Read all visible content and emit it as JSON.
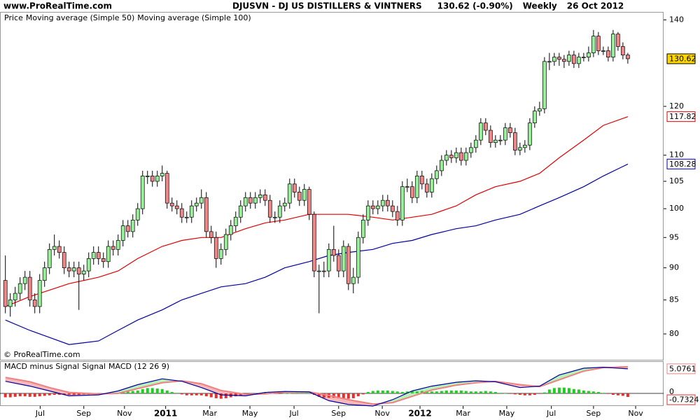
{
  "header": {
    "site": "www.ProRealTime.com"
  },
  "chart_data": [
    {
      "type": "candlestick",
      "title": "DJUSVN - DJ US DISTILLERS & VINTNERS",
      "quote": "130.62 (-0.90%)",
      "period": "Weekly",
      "date": "26 Oct 2012",
      "copyright": "© ProRealTime.com",
      "log_scale": true,
      "price": {
        "name": "Price",
        "up_color": "#99ee99",
        "down_color": "#ee8888",
        "open": [
          88,
          84,
          85,
          86,
          87.5,
          88.5,
          85,
          84,
          88,
          90,
          93,
          93.5,
          92.5,
          90,
          89.5,
          90,
          89,
          89.5,
          91.5,
          92.5,
          91.5,
          91,
          93.5,
          93,
          94.5,
          97,
          96,
          98,
          100,
          106,
          106,
          105,
          106,
          106.5,
          101,
          100.5,
          100,
          98.5,
          98.5,
          100.5,
          101,
          102,
          96,
          95,
          91.5,
          93,
          95.5,
          97,
          98.5,
          100.5,
          102,
          101,
          102,
          102.5,
          101.5,
          98.5,
          98.5,
          100.5,
          101,
          104.5,
          103,
          101.5,
          103.5,
          99,
          89.5,
          89.5,
          89.5,
          93,
          92,
          89.5,
          93.5,
          87.5,
          88.5,
          95,
          98,
          100.5,
          100,
          100.5,
          101.5,
          100.5,
          99.5,
          98,
          104,
          104,
          102,
          106,
          104.5,
          103,
          105.5,
          107,
          109,
          110,
          109.5,
          110.5,
          109,
          110.5,
          111.5,
          113,
          116.5,
          115,
          112.5,
          113,
          113,
          115.5,
          114.5,
          111,
          111.5,
          112,
          116.5,
          119,
          119.5,
          130,
          130,
          131,
          130.5,
          130,
          131.5,
          129.5,
          131,
          131,
          132,
          136,
          132.5,
          132.5,
          131,
          136.5,
          133.5,
          131.5
        ],
        "high": [
          92,
          86,
          87,
          88.5,
          89.5,
          89.5,
          86,
          89,
          91,
          94,
          95.5,
          94.5,
          93.5,
          91,
          91,
          91,
          90.5,
          92.5,
          93.5,
          93.5,
          92.5,
          94.5,
          94.5,
          95.5,
          98,
          98,
          99,
          101,
          107,
          107,
          107,
          107,
          108,
          107,
          102,
          101.5,
          101,
          99.5,
          101.5,
          102,
          103.5,
          103,
          97,
          96,
          94,
          96.5,
          98,
          99.5,
          101.5,
          103,
          103,
          103,
          103.5,
          103.5,
          102.5,
          99.5,
          101.5,
          102,
          105.5,
          105.5,
          104,
          104.5,
          104,
          99.5,
          90.5,
          91,
          94,
          97,
          93,
          94.5,
          94,
          90,
          96,
          99,
          101.5,
          101.5,
          101.5,
          102.5,
          102.5,
          101.5,
          100.5,
          105,
          105.5,
          105,
          107,
          107,
          105.5,
          106.5,
          108,
          110,
          111,
          111,
          111.5,
          111.5,
          111.5,
          112.5,
          114,
          117.5,
          117.5,
          116,
          114,
          114,
          116.5,
          116.5,
          115.5,
          112.5,
          113,
          117.5,
          120,
          121,
          131,
          132,
          132,
          132,
          131.5,
          132.5,
          132.5,
          132,
          132,
          133.5,
          137.5,
          137,
          133.5,
          133.5,
          137.5,
          137,
          134.5,
          132
        ],
        "low": [
          83,
          82.5,
          84,
          85,
          86.5,
          84,
          83,
          83,
          87,
          89,
          92,
          91.5,
          89,
          88.5,
          88.5,
          83.5,
          88,
          88.5,
          90.5,
          90.5,
          90,
          90,
          92,
          92,
          93.5,
          95,
          95,
          97,
          99,
          104.5,
          104,
          104,
          105,
          100,
          99.5,
          99,
          97.5,
          97.5,
          97.5,
          99.5,
          100,
          95,
          94,
          90,
          90.5,
          92,
          94.5,
          96,
          97.5,
          99.5,
          100,
          100,
          101,
          100.5,
          97.5,
          97.5,
          97.5,
          99.5,
          100,
          102,
          100.5,
          100.5,
          98,
          88.5,
          83,
          88.5,
          88.5,
          91,
          88.5,
          88.5,
          86.5,
          86,
          87.5,
          94,
          97,
          99,
          99,
          99.5,
          99.5,
          98.5,
          97,
          97,
          103,
          101,
          101,
          103.5,
          102,
          102,
          104.5,
          106,
          108,
          108.5,
          108.5,
          108,
          108,
          109.5,
          110.5,
          112,
          114,
          111.5,
          111.5,
          112,
          112,
          113.5,
          110,
          110,
          110.5,
          111,
          115.5,
          118,
          118.5,
          128,
          129,
          129,
          128.5,
          129,
          128.5,
          128.5,
          130,
          130,
          131,
          131.5,
          131.5,
          130,
          130,
          132.5,
          130.5,
          129.5
        ],
        "close": [
          84,
          85,
          86,
          87.5,
          88.5,
          85,
          84,
          88,
          90,
          93,
          93.5,
          92.5,
          90,
          89.5,
          90,
          89,
          89.5,
          91.5,
          92.5,
          91.5,
          91,
          93.5,
          93,
          94.5,
          97,
          96,
          98,
          100,
          106,
          106,
          105,
          106,
          106.5,
          101,
          100.5,
          100,
          98.5,
          98.5,
          100.5,
          101,
          102,
          96,
          95,
          91.5,
          93,
          95.5,
          97,
          98.5,
          100.5,
          102,
          101,
          102,
          102.5,
          101.5,
          98.5,
          98.5,
          100.5,
          101,
          104.5,
          103,
          101.5,
          103.5,
          99,
          89.5,
          89.5,
          89.5,
          93,
          92,
          89.5,
          93.5,
          87.5,
          88.5,
          95,
          98,
          100.5,
          100,
          100.5,
          101.5,
          100.5,
          99.5,
          98,
          104,
          104,
          102,
          106,
          104.5,
          103,
          105.5,
          107,
          109,
          110,
          109.5,
          110.5,
          109,
          110.5,
          111.5,
          113,
          116.5,
          115,
          112.5,
          113,
          113,
          115.5,
          114.5,
          111,
          111.5,
          112,
          116.5,
          119,
          119.5,
          130,
          130,
          131,
          130.5,
          130,
          131.5,
          129.5,
          131,
          131,
          132,
          136,
          132.5,
          132.5,
          131,
          136.5,
          133.5,
          131.5,
          130.62
        ]
      },
      "series": [
        {
          "name": "Moving average (Simple 50)",
          "color": "#e00000",
          "x": [
            0,
            5,
            9,
            13,
            19,
            23,
            27,
            32,
            36,
            40,
            44,
            49,
            53,
            57,
            62,
            66,
            70,
            75,
            79,
            83,
            87,
            92,
            96,
            100,
            105,
            109,
            113,
            118,
            122,
            127
          ],
          "values": [
            84,
            85.5,
            86.5,
            87.5,
            88.5,
            89.5,
            91.5,
            93.5,
            94.5,
            95,
            95,
            96.5,
            97.5,
            98,
            99,
            99,
            99,
            98.5,
            98,
            98.5,
            99,
            100.5,
            102.5,
            104,
            105,
            106.5,
            109.5,
            113,
            116,
            117.82
          ]
        },
        {
          "name": "Moving average (Simple 100)",
          "color": "#0000a0",
          "x": [
            0,
            5,
            9,
            13,
            19,
            23,
            27,
            32,
            36,
            40,
            44,
            49,
            53,
            57,
            62,
            66,
            70,
            75,
            79,
            83,
            87,
            92,
            96,
            100,
            105,
            109,
            113,
            118,
            122,
            127
          ],
          "values": [
            82,
            80.5,
            79.5,
            78.5,
            79,
            80.5,
            82,
            83.5,
            85,
            86,
            87,
            87.5,
            88.5,
            90,
            91,
            92,
            92.5,
            93,
            94,
            94.5,
            95.5,
            96.5,
            97,
            98,
            99,
            100.5,
            102,
            104,
            106,
            108.28
          ]
        }
      ],
      "last_color": "#ffd700",
      "xlim": [
        -1.1,
        134.3
      ],
      "xticks": [
        {
          "value": 7.1,
          "label": "Jul"
        },
        {
          "value": 16,
          "label": "Sep"
        },
        {
          "value": 24.3,
          "label": "Nov"
        },
        {
          "value": 32.7,
          "label": "2011"
        },
        {
          "value": 41.7,
          "label": "Mar"
        },
        {
          "value": 49.9,
          "label": "May"
        },
        {
          "value": 58.9,
          "label": "Jul"
        },
        {
          "value": 68,
          "label": "Sep"
        },
        {
          "value": 76.9,
          "label": "Nov"
        },
        {
          "value": 84.6,
          "label": "2012"
        },
        {
          "value": 93.4,
          "label": "Mar"
        },
        {
          "value": 102.3,
          "label": "May"
        },
        {
          "value": 111.4,
          "label": "Jul"
        },
        {
          "value": 120,
          "label": "Sep"
        },
        {
          "value": 128.6,
          "label": "Nov"
        }
      ],
      "ylim": [
        76.3,
        142
      ],
      "yticks": [
        80,
        85,
        90,
        95,
        100,
        105,
        110,
        120,
        140
      ]
    },
    {
      "type": "macd",
      "series": [
        {
          "name": "MACD minus Signal",
          "color": "#e03030",
          "up_color": "#22cc22",
          "values": [
            -0.8,
            -0.8,
            -0.7,
            -0.6,
            -0.6,
            -0.7,
            -0.7,
            -0.6,
            -0.5,
            -0.4,
            -0.3,
            -0.3,
            -0.3,
            -0.3,
            -0.3,
            -0.3,
            -0.2,
            -0.2,
            -0.1,
            -0.1,
            -0.1,
            -0.1,
            0,
            0.1,
            0.3,
            0.4,
            0.5,
            0.6,
            0.9,
            1.1,
            1.1,
            1,
            0.9,
            0.6,
            0.3,
            0.1,
            -0.2,
            -0.4,
            -0.4,
            -0.4,
            -0.4,
            -0.6,
            -0.8,
            -1.0,
            -1.1,
            -1.0,
            -0.8,
            -0.6,
            -0.4,
            -0.2,
            -0.1,
            0,
            0.1,
            0.2,
            0.1,
            -0.1,
            -0.1,
            0,
            0,
            0.1,
            0.1,
            0.1,
            0.1,
            -0.3,
            -0.7,
            -0.9,
            -0.9,
            -0.9,
            -1.0,
            -1.0,
            -1.1,
            -1.0,
            -0.6,
            -0.2,
            0.3,
            0.5,
            0.6,
            0.6,
            0.6,
            0.5,
            0.4,
            0.3,
            0.4,
            0.5,
            0.4,
            0.5,
            0.5,
            0.4,
            0.4,
            0.5,
            0.6,
            0.6,
            0.6,
            0.6,
            0.5,
            0.4,
            0.4,
            0.4,
            0.5,
            0.4,
            0.3,
            0.1,
            0,
            -0.1,
            -0.2,
            -0.3,
            -0.4,
            -0.4,
            -0.3,
            -0.1,
            0.2,
            0.8,
            1.1,
            1.2,
            1.2,
            1.1,
            0.9,
            0.8,
            0.6,
            0.5,
            0.4,
            0.3,
            0.1,
            -0.1,
            -0.3,
            -0.4,
            -0.5,
            -0.7324
          ]
        },
        {
          "name": "Signal",
          "color": "#f08080",
          "x": [
            0,
            5,
            9,
            13,
            19,
            23,
            27,
            32,
            36,
            40,
            44,
            49,
            53,
            57,
            62,
            66,
            70,
            75,
            79,
            83,
            87,
            92,
            96,
            100,
            105,
            109,
            113,
            118,
            122,
            127
          ],
          "values": [
            3.3,
            2.4,
            1.2,
            0.2,
            -0.1,
            0,
            1,
            2.2,
            2.6,
            2,
            0.6,
            -0.2,
            -0.1,
            0.3,
            0.3,
            -0.4,
            -1.3,
            -2.2,
            -1.9,
            -0.6,
            0.7,
            1.7,
            2.2,
            2.5,
            1.8,
            1.4,
            2.8,
            4.6,
            5.3,
            5.5
          ]
        },
        {
          "name": "MACD (12 26 9)",
          "color": "#0000a0",
          "x": [
            0,
            5,
            9,
            13,
            19,
            23,
            27,
            32,
            36,
            40,
            44,
            49,
            53,
            57,
            62,
            66,
            70,
            75,
            79,
            83,
            87,
            92,
            96,
            100,
            105,
            109,
            113,
            118,
            122,
            127
          ],
          "values": [
            2.5,
            1.5,
            0.5,
            -0.5,
            -0.3,
            0.5,
            1.8,
            3,
            2.5,
            1.2,
            -0.3,
            -0.5,
            0.2,
            0.4,
            0.3,
            -1.5,
            -2.3,
            -2.6,
            -1.3,
            0.5,
            1.5,
            2.3,
            2.6,
            2.4,
            1.2,
            1.5,
            3.8,
            5.2,
            5.4,
            5.0761
          ]
        }
      ],
      "ylim": [
        -2.6,
        6.5
      ],
      "yticks": [
        0
      ]
    }
  ]
}
